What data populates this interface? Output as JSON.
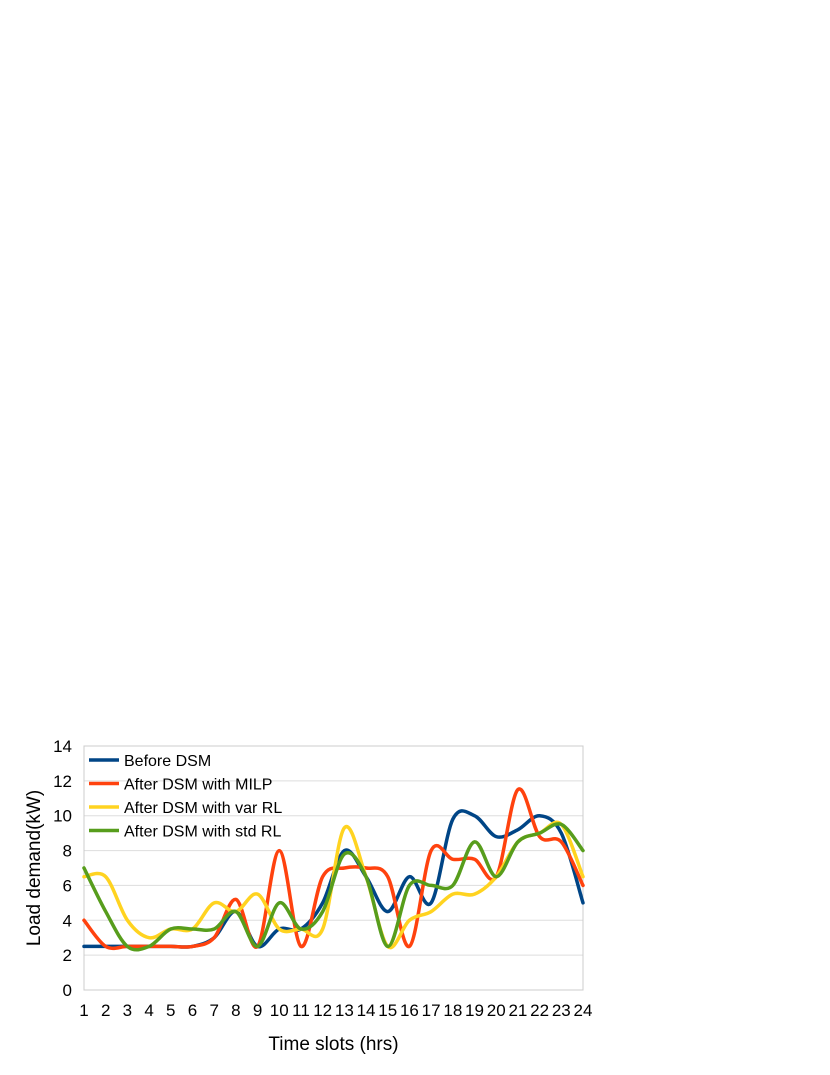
{
  "chart_data": {
    "type": "line",
    "smooth": true,
    "title": "",
    "xlabel": "Time slots (hrs)",
    "ylabel": "Load demand(kW)",
    "ylim": [
      0,
      14
    ],
    "yticks": [
      0,
      2,
      4,
      6,
      8,
      10,
      12,
      14
    ],
    "grid": true,
    "legend_position": "top-left",
    "x": [
      1,
      2,
      3,
      4,
      5,
      6,
      7,
      8,
      9,
      10,
      11,
      12,
      13,
      14,
      15,
      16,
      17,
      18,
      19,
      20,
      21,
      22,
      23,
      24
    ],
    "series": [
      {
        "name": "Before DSM",
        "color": "#004586",
        "values": [
          2.5,
          2.5,
          2.5,
          2.5,
          2.5,
          2.5,
          3.0,
          4.5,
          2.5,
          3.5,
          3.5,
          5.0,
          8.0,
          6.5,
          4.5,
          6.5,
          5.0,
          9.8,
          10.0,
          8.8,
          9.2,
          10.0,
          9.0,
          5.0
        ]
      },
      {
        "name": "After DSM with MILP",
        "color": "#ff420e",
        "values": [
          4.0,
          2.5,
          2.5,
          2.5,
          2.5,
          2.5,
          3.0,
          5.2,
          2.5,
          8.0,
          2.5,
          6.5,
          7.0,
          7.0,
          6.5,
          2.5,
          8.0,
          7.5,
          7.5,
          6.5,
          11.5,
          8.8,
          8.5,
          6.0
        ]
      },
      {
        "name": "After DSM with var RL",
        "color": "#ffd320",
        "values": [
          6.5,
          6.5,
          4.0,
          3.0,
          3.5,
          3.5,
          5.0,
          4.5,
          5.5,
          3.5,
          3.5,
          3.5,
          9.3,
          6.5,
          2.5,
          4.0,
          4.5,
          5.5,
          5.5,
          6.5,
          8.5,
          9.0,
          9.5,
          6.5
        ]
      },
      {
        "name": "After DSM with std RL",
        "color": "#579d1c",
        "values": [
          7.0,
          4.5,
          2.5,
          2.5,
          3.5,
          3.5,
          3.5,
          4.5,
          2.5,
          5.0,
          3.5,
          4.5,
          7.8,
          6.5,
          2.5,
          6.0,
          6.0,
          6.0,
          8.5,
          6.5,
          8.5,
          9.0,
          9.5,
          8.0
        ]
      }
    ]
  }
}
